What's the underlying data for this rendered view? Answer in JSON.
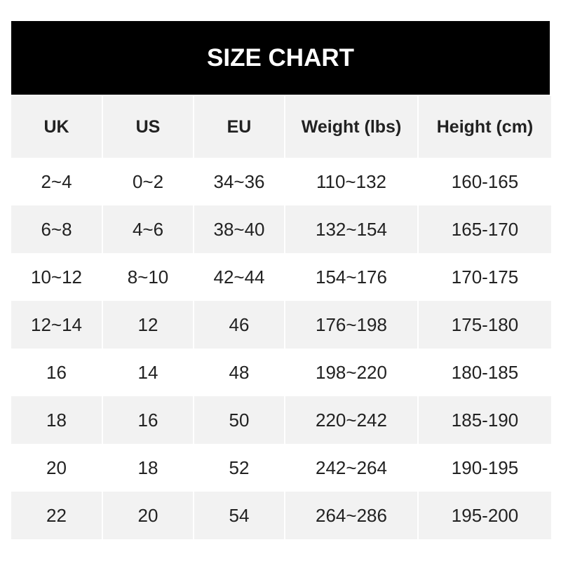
{
  "title": "SIZE CHART",
  "headers": [
    "UK",
    "US",
    "EU",
    "Weight (lbs)",
    "Height (cm)"
  ],
  "rows": [
    [
      "2~4",
      "0~2",
      "34~36",
      "110~132",
      "160-165"
    ],
    [
      "6~8",
      "4~6",
      "38~40",
      "132~154",
      "165-170"
    ],
    [
      "10~12",
      "8~10",
      "42~44",
      "154~176",
      "170-175"
    ],
    [
      "12~14",
      "12",
      "46",
      "176~198",
      "175-180"
    ],
    [
      "16",
      "14",
      "48",
      "198~220",
      "180-185"
    ],
    [
      "18",
      "16",
      "50",
      "220~242",
      "185-190"
    ],
    [
      "20",
      "18",
      "52",
      "242~264",
      "190-195"
    ],
    [
      "22",
      "20",
      "54",
      "264~286",
      "195-200"
    ]
  ]
}
